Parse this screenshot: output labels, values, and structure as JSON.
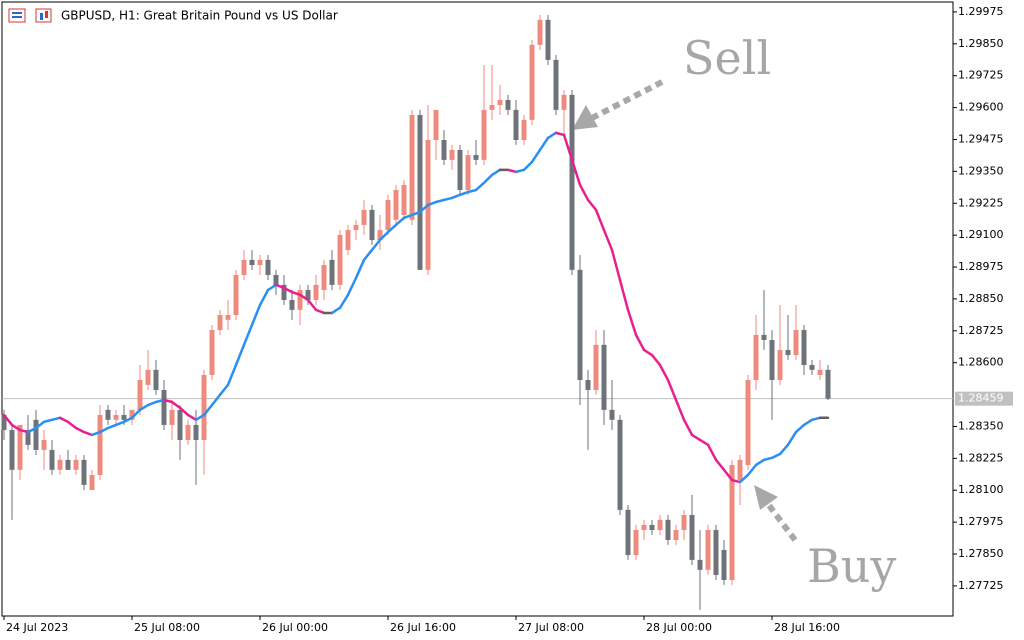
{
  "chart_data": {
    "type": "candlestick",
    "title": "GBPUSD, H1:  Great Britain Pound vs US Dollar",
    "categories": [
      "24 Jul 2023",
      null,
      null,
      null,
      null,
      null,
      null,
      null,
      null,
      null,
      null,
      null,
      null,
      null,
      null,
      null,
      "25 Jul 08:00",
      null,
      null,
      null,
      null,
      null,
      null,
      null,
      null,
      null,
      null,
      null,
      null,
      null,
      null,
      null,
      "26 Jul 00:00",
      null,
      null,
      null,
      null,
      null,
      null,
      null,
      null,
      null,
      null,
      null,
      null,
      null,
      null,
      null,
      "26 Jul 16:00",
      null,
      null,
      null,
      null,
      null,
      null,
      null,
      null,
      null,
      null,
      null,
      null,
      null,
      null,
      null,
      "27 Jul 08:00",
      null,
      null,
      null,
      null,
      null,
      null,
      null,
      null,
      null,
      null,
      null,
      null,
      null,
      null,
      null,
      "28 Jul 00:00",
      null,
      null,
      null,
      null,
      null,
      null,
      null,
      null,
      null,
      null,
      null,
      null,
      null,
      null,
      null,
      "28 Jul 16:00",
      null,
      null,
      null,
      null,
      null,
      null,
      null
    ],
    "open": [
      1.28395,
      1.28336,
      1.2818,
      1.28336,
      1.28376,
      1.28258,
      1.28258,
      1.2818,
      1.28219,
      1.2818,
      1.28219,
      1.28101,
      1.2816,
      1.28415,
      1.28376,
      1.28395,
      1.28376,
      1.28415,
      1.28513,
      1.28572,
      1.28493,
      1.28356,
      1.28415,
      1.28297,
      1.28356,
      1.28297,
      1.28552,
      1.28728,
      1.28768,
      1.28787,
      1.28944,
      1.29003,
      1.28983,
      1.29003,
      1.28944,
      1.28905,
      1.28846,
      1.28807,
      1.28885,
      1.28846,
      1.28885,
      1.29003,
      1.28905,
      1.29042,
      1.2912,
      1.2914,
      1.29199,
      1.29081,
      1.2912,
      1.2916,
      1.29179,
      1.2916,
      1.29571,
      1.28964,
      1.29473,
      1.29473,
      1.29395,
      1.29434,
      1.29277,
      1.29414,
      1.29395,
      1.29591,
      1.2961,
      1.2963,
      1.29591,
      1.29473,
      1.29552,
      1.29846,
      1.29944,
      1.29787,
      1.29591,
      1.2965,
      1.28964,
      1.28532,
      1.28493,
      1.2867,
      1.28415,
      1.28376,
      1.28023,
      1.27846,
      1.27944,
      1.27964,
      1.27944,
      1.27984,
      1.27905,
      1.27944,
      1.28003,
      1.27827,
      1.27788,
      1.27944,
      1.27866,
      1.27748,
      1.2814,
      1.28199,
      1.28532,
      1.28709,
      1.28689,
      1.28532,
      1.2865,
      1.2863,
      1.28728,
      1.28591,
      1.28552,
      1.28572
    ],
    "high": [
      1.28415,
      1.28356,
      1.28336,
      1.28395,
      1.28415,
      1.28336,
      1.28297,
      1.28238,
      1.28258,
      1.28238,
      1.28238,
      1.2818,
      1.28434,
      1.28434,
      1.28415,
      1.28434,
      1.28415,
      1.28591,
      1.2865,
      1.28611,
      1.28532,
      1.28454,
      1.28434,
      1.28376,
      1.28415,
      1.28572,
      1.28748,
      1.28807,
      1.28846,
      1.28964,
      1.29042,
      1.29042,
      1.29022,
      1.29022,
      1.28964,
      1.28944,
      1.28885,
      1.28905,
      1.28905,
      1.28944,
      1.29003,
      1.29042,
      1.2912,
      1.2914,
      1.2916,
      1.29238,
      1.29218,
      1.29179,
      1.29258,
      1.29297,
      1.29316,
      1.29591,
      1.29591,
      1.2961,
      1.29591,
      1.29512,
      1.29454,
      1.29454,
      1.29434,
      1.29473,
      1.29767,
      1.29767,
      1.29689,
      1.2965,
      1.2963,
      1.29571,
      1.29865,
      1.29963,
      1.29963,
      1.29806,
      1.29669,
      1.29669,
      1.29022,
      1.28572,
      1.28728,
      1.28728,
      1.28532,
      1.28395,
      1.28042,
      1.27964,
      1.27984,
      1.27984,
      1.28003,
      1.28003,
      1.27964,
      1.28023,
      1.28082,
      1.27944,
      1.27964,
      1.27964,
      1.27905,
      1.28219,
      1.28238,
      1.28552,
      1.28787,
      1.28885,
      1.28728,
      1.28826,
      1.28787,
      1.28826,
      1.28748,
      1.28611,
      1.28611,
      1.28591
    ],
    "low": [
      1.28297,
      1.27984,
      1.2814,
      1.28258,
      1.28238,
      1.2818,
      1.2816,
      1.2816,
      1.2818,
      1.2816,
      1.28101,
      1.28101,
      1.2814,
      1.28356,
      1.28356,
      1.28356,
      1.28356,
      1.28395,
      1.28493,
      1.28474,
      1.28336,
      1.28297,
      1.28219,
      1.28278,
      1.28121,
      1.2816,
      1.28532,
      1.28709,
      1.28728,
      1.28768,
      1.28924,
      1.28964,
      1.28944,
      1.28924,
      1.28866,
      1.28826,
      1.28768,
      1.28748,
      1.28826,
      1.28826,
      1.28846,
      1.28885,
      1.28885,
      1.29022,
      1.29081,
      1.29101,
      1.29062,
      1.29042,
      1.29101,
      1.2914,
      1.2916,
      1.2914,
      1.28964,
      1.28944,
      1.29395,
      1.29375,
      1.29356,
      1.29258,
      1.29258,
      1.29375,
      1.29375,
      1.29552,
      1.29571,
      1.29571,
      1.29454,
      1.29454,
      1.29532,
      1.29826,
      1.29767,
      1.29571,
      1.29493,
      1.28944,
      1.28434,
      1.28258,
      1.28474,
      1.28356,
      1.28336,
      1.28003,
      1.27827,
      1.27827,
      1.27905,
      1.27925,
      1.27925,
      1.27886,
      1.27886,
      1.27905,
      1.27807,
      1.27631,
      1.27768,
      1.27748,
      1.27729,
      1.27729,
      1.28042,
      1.2818,
      1.28493,
      1.2865,
      1.28376,
      1.28513,
      1.28611,
      1.28611,
      1.28552,
      1.28552,
      1.28532,
      1.28454
    ],
    "close": [
      1.28336,
      1.2818,
      1.28356,
      1.28278,
      1.28258,
      1.28297,
      1.2818,
      1.28219,
      1.2818,
      1.28219,
      1.28121,
      1.2816,
      1.28395,
      1.28376,
      1.28395,
      1.28376,
      1.28415,
      1.28532,
      1.28572,
      1.28493,
      1.28356,
      1.28415,
      1.28297,
      1.28356,
      1.28297,
      1.28552,
      1.28728,
      1.28787,
      1.28787,
      1.28944,
      1.29003,
      1.28983,
      1.29003,
      1.28944,
      1.28905,
      1.28846,
      1.28807,
      1.28885,
      1.28846,
      1.28905,
      1.28983,
      1.28905,
      1.29101,
      1.2912,
      1.2914,
      1.29199,
      1.29081,
      1.2912,
      1.29238,
      1.29277,
      1.29297,
      1.29571,
      1.28964,
      1.29473,
      1.29591,
      1.29395,
      1.29434,
      1.29277,
      1.29414,
      1.29395,
      1.29591,
      1.2961,
      1.2963,
      1.29591,
      1.29473,
      1.29552,
      1.29846,
      1.29944,
      1.29787,
      1.29591,
      1.2965,
      1.28964,
      1.28532,
      1.28493,
      1.2867,
      1.28415,
      1.28376,
      1.28023,
      1.27846,
      1.27944,
      1.27964,
      1.27944,
      1.27984,
      1.27905,
      1.27944,
      1.28003,
      1.27827,
      1.27788,
      1.27944,
      1.27768,
      1.27748,
      1.28199,
      1.28219,
      1.28532,
      1.28709,
      1.28689,
      1.28532,
      1.2865,
      1.2863,
      1.28728,
      1.28591,
      1.28572,
      1.28572,
      1.28459
    ],
    "colors": {
      "up": "#ef8b7e",
      "down": "#6e7379"
    },
    "ma": {
      "values": [
        1.28395,
        1.28356,
        1.28336,
        1.28328,
        1.28344,
        1.28368,
        1.28376,
        1.28384,
        1.28368,
        1.28344,
        1.28328,
        1.28317,
        1.28328,
        1.28344,
        1.28356,
        1.28368,
        1.28384,
        1.28415,
        1.28434,
        1.28446,
        1.28454,
        1.28446,
        1.28423,
        1.28395,
        1.28376,
        1.28395,
        1.28434,
        1.28474,
        1.28513,
        1.28591,
        1.2867,
        1.28748,
        1.28826,
        1.28885,
        1.28905,
        1.28893,
        1.28877,
        1.28866,
        1.28846,
        1.28807,
        1.28795,
        1.28795,
        1.28815,
        1.28866,
        1.28932,
        1.29003,
        1.29042,
        1.29081,
        1.29112,
        1.2914,
        1.29168,
        1.29179,
        1.29191,
        1.29218,
        1.2923,
        1.29238,
        1.29246,
        1.29258,
        1.29269,
        1.29277,
        1.29305,
        1.29336,
        1.29356,
        1.29356,
        1.29348,
        1.29356,
        1.29387,
        1.29434,
        1.29481,
        1.29501,
        1.29493,
        1.29395,
        1.29297,
        1.29238,
        1.29199,
        1.2912,
        1.29042,
        1.28924,
        1.28807,
        1.28709,
        1.2865,
        1.2863,
        1.28591,
        1.28532,
        1.28454,
        1.28376,
        1.28317,
        1.28297,
        1.28278,
        1.28219,
        1.2818,
        1.2814,
        1.28132,
        1.2816,
        1.28199,
        1.28219,
        1.28227,
        1.28242,
        1.28278,
        1.28328,
        1.28356,
        1.28376,
        1.28384,
        1.28384
      ],
      "colors": {
        "up": "#2a8ff0",
        "down": "#e8208f",
        "flat": "#5f5f5f"
      }
    },
    "ylim": [
      1.27607,
      1.30014
    ],
    "yticks": [
      1.29975,
      {
        "value": 1.2985,
        "label": "1.29850"
      },
      1.29725,
      {
        "value": 1.296,
        "label": "1.29600"
      },
      1.29475,
      {
        "value": 1.2935,
        "label": "1.29350"
      },
      1.29225,
      {
        "value": 1.291,
        "label": "1.29100"
      },
      1.28975,
      {
        "value": 1.2885,
        "label": "1.28850"
      },
      1.28725,
      {
        "value": 1.286,
        "label": "1.28600"
      },
      {
        "value": 1.2835,
        "label": "1.28350"
      },
      1.28225,
      {
        "value": 1.281,
        "label": "1.28100"
      },
      1.27975,
      {
        "value": 1.2785,
        "label": "1.27850"
      },
      1.27725
    ],
    "last_price": 1.28459,
    "annotations": [
      "Sell",
      "Buy"
    ]
  }
}
